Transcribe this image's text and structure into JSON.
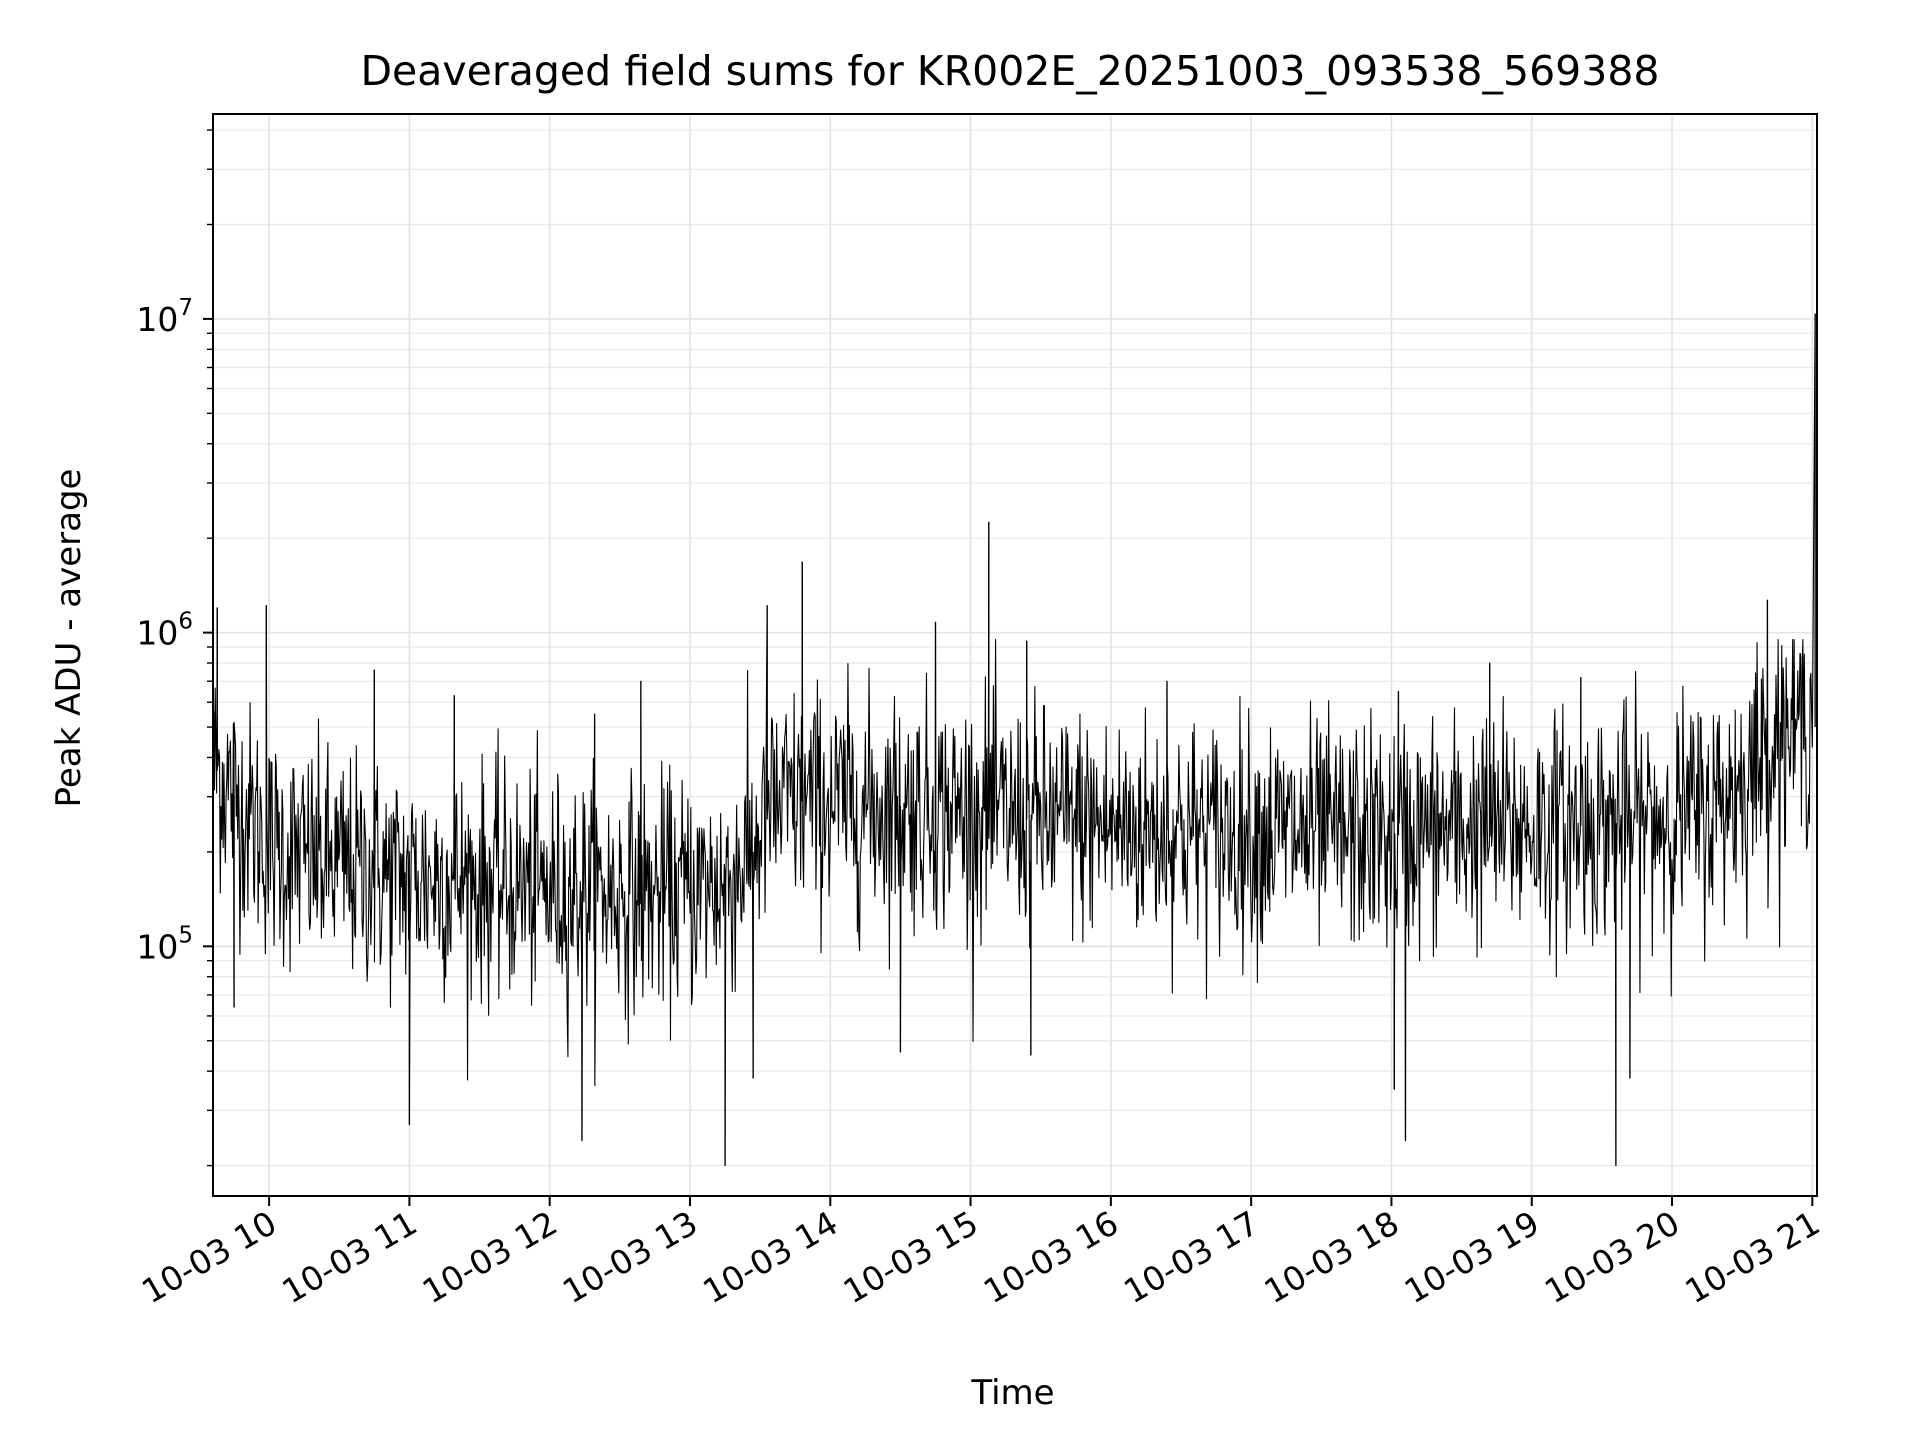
{
  "chart_data": {
    "type": "line",
    "title": "Deaveraged field sums for KR002E_20251003_093538_569388",
    "xlabel": "Time",
    "ylabel": "Peak ADU - average",
    "xscale": "time",
    "yscale": "log",
    "x_range": [
      "2025-10-03T09:36",
      "2025-10-03T21:02"
    ],
    "ylim": [
      16000,
      45000000
    ],
    "grid": true,
    "line_color": "#000000",
    "x_tick_labels": [
      "10-03 10",
      "10-03 11",
      "10-03 12",
      "10-03 13",
      "10-03 14",
      "10-03 15",
      "10-03 16",
      "10-03 17",
      "10-03 18",
      "10-03 19",
      "10-03 20",
      "10-03 21"
    ],
    "y_tick_labels": [
      {
        "base": "10",
        "exp": "5",
        "value": 100000
      },
      {
        "base": "10",
        "exp": "6",
        "value": 1000000
      },
      {
        "base": "10",
        "exp": "7",
        "value": 10000000
      }
    ],
    "series": [
      {
        "x_hours": [
          9.6,
          9.8,
          10.0,
          10.25,
          10.5,
          10.75,
          11.0,
          11.25,
          11.5,
          11.75,
          12.0,
          12.25,
          12.5,
          12.75,
          13.0,
          13.25,
          13.45,
          13.55,
          13.75,
          14.0,
          14.25,
          14.5,
          14.75,
          15.0,
          15.25,
          15.5,
          15.75,
          16.0,
          16.25,
          16.5,
          16.75,
          17.0,
          17.25,
          17.5,
          17.75,
          18.0,
          18.25,
          18.5,
          18.75,
          19.0,
          19.25,
          19.5,
          19.75,
          20.0,
          20.25,
          20.5,
          20.75,
          21.0,
          21.02
        ],
        "typical": [
          380000,
          280000,
          210000,
          190000,
          180000,
          170000,
          165000,
          165000,
          160000,
          155000,
          150000,
          150000,
          148000,
          145000,
          150000,
          160000,
          200000,
          270000,
          290000,
          290000,
          280000,
          280000,
          270000,
          270000,
          260000,
          250000,
          250000,
          240000,
          235000,
          235000,
          230000,
          230000,
          230000,
          225000,
          225000,
          225000,
          230000,
          235000,
          240000,
          240000,
          240000,
          245000,
          250000,
          260000,
          270000,
          330000,
          480000,
          520000,
          500000
        ],
        "spikes": [
          {
            "t": 9.63,
            "v": 1200000
          },
          {
            "t": 9.98,
            "v": 1220000
          },
          {
            "t": 10.75,
            "v": 760000
          },
          {
            "t": 11.32,
            "v": 630000
          },
          {
            "t": 12.32,
            "v": 550000
          },
          {
            "t": 12.65,
            "v": 700000
          },
          {
            "t": 13.55,
            "v": 1220000
          },
          {
            "t": 13.8,
            "v": 1680000
          },
          {
            "t": 14.75,
            "v": 1080000
          },
          {
            "t": 15.13,
            "v": 2250000
          },
          {
            "t": 15.4,
            "v": 940000
          },
          {
            "t": 16.4,
            "v": 700000
          },
          {
            "t": 18.05,
            "v": 650000
          },
          {
            "t": 18.7,
            "v": 800000
          },
          {
            "t": 19.35,
            "v": 720000
          },
          {
            "t": 20.68,
            "v": 1270000
          },
          {
            "t": 21.02,
            "v": 10400000
          }
        ],
        "dips": [
          {
            "t": 9.75,
            "v": 64000
          },
          {
            "t": 11.0,
            "v": 27000
          },
          {
            "t": 12.23,
            "v": 24000
          },
          {
            "t": 13.25,
            "v": 20000
          },
          {
            "t": 13.45,
            "v": 38000
          },
          {
            "t": 14.5,
            "v": 46000
          },
          {
            "t": 15.43,
            "v": 45000
          },
          {
            "t": 18.02,
            "v": 35000
          },
          {
            "t": 18.1,
            "v": 24000
          },
          {
            "t": 19.6,
            "v": 20000
          },
          {
            "t": 19.7,
            "v": 38000
          }
        ]
      }
    ]
  }
}
